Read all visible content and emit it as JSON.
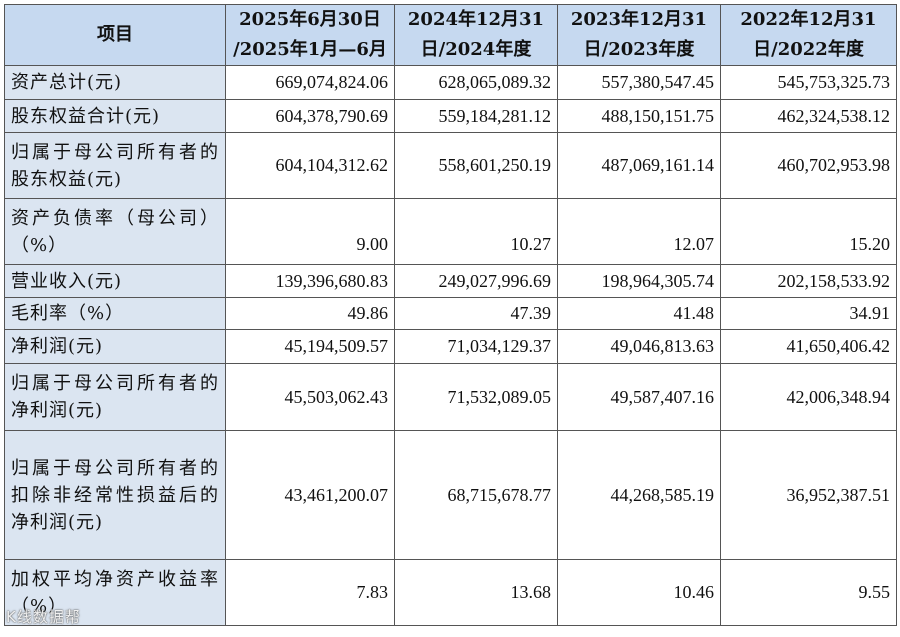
{
  "table": {
    "headers": [
      [
        "项目"
      ],
      [
        "2025年6月30日",
        "/2025年1月—6月"
      ],
      [
        "2024年12月31",
        "日/2024年度"
      ],
      [
        "2023年12月31",
        "日/2023年度"
      ],
      [
        "2022年12月31",
        "日/2022年度"
      ]
    ],
    "rows": [
      {
        "label": "资产总计(元)",
        "values": [
          "669,074,824.06",
          "628,065,089.32",
          "557,380,547.45",
          "545,753,325.73"
        ]
      },
      {
        "label": "股东权益合计(元)",
        "values": [
          "604,378,790.69",
          "559,184,281.12",
          "488,150,151.75",
          "462,324,538.12"
        ]
      },
      {
        "label": "归属于母公司所有者的股东权益(元)",
        "values": [
          "604,104,312.62",
          "558,601,250.19",
          "487,069,161.14",
          "460,702,953.98"
        ]
      },
      {
        "label": "资产负债率（母公司）（%）",
        "values": [
          "9.00",
          "10.27",
          "12.07",
          "15.20"
        ]
      },
      {
        "label": "营业收入(元)",
        "values": [
          "139,396,680.83",
          "249,027,996.69",
          "198,964,305.74",
          "202,158,533.92"
        ]
      },
      {
        "label": "毛利率（%）",
        "values": [
          "49.86",
          "47.39",
          "41.48",
          "34.91"
        ]
      },
      {
        "label": "净利润(元)",
        "values": [
          "45,194,509.57",
          "71,034,129.37",
          "49,046,813.63",
          "41,650,406.42"
        ]
      },
      {
        "label": "归属于母公司所有者的净利润(元)",
        "values": [
          "45,503,062.43",
          "71,532,089.05",
          "49,587,407.16",
          "42,006,348.94"
        ]
      },
      {
        "label": "归属于母公司所有者的扣除非经常性损益后的净利润(元)",
        "values": [
          "43,461,200.07",
          "68,715,678.77",
          "44,268,585.19",
          "36,952,387.51"
        ]
      },
      {
        "label": "加权平均净资产收益率（%）",
        "values": [
          "7.83",
          "13.68",
          "10.46",
          "9.55"
        ]
      }
    ]
  },
  "watermark": "K线数据帮"
}
